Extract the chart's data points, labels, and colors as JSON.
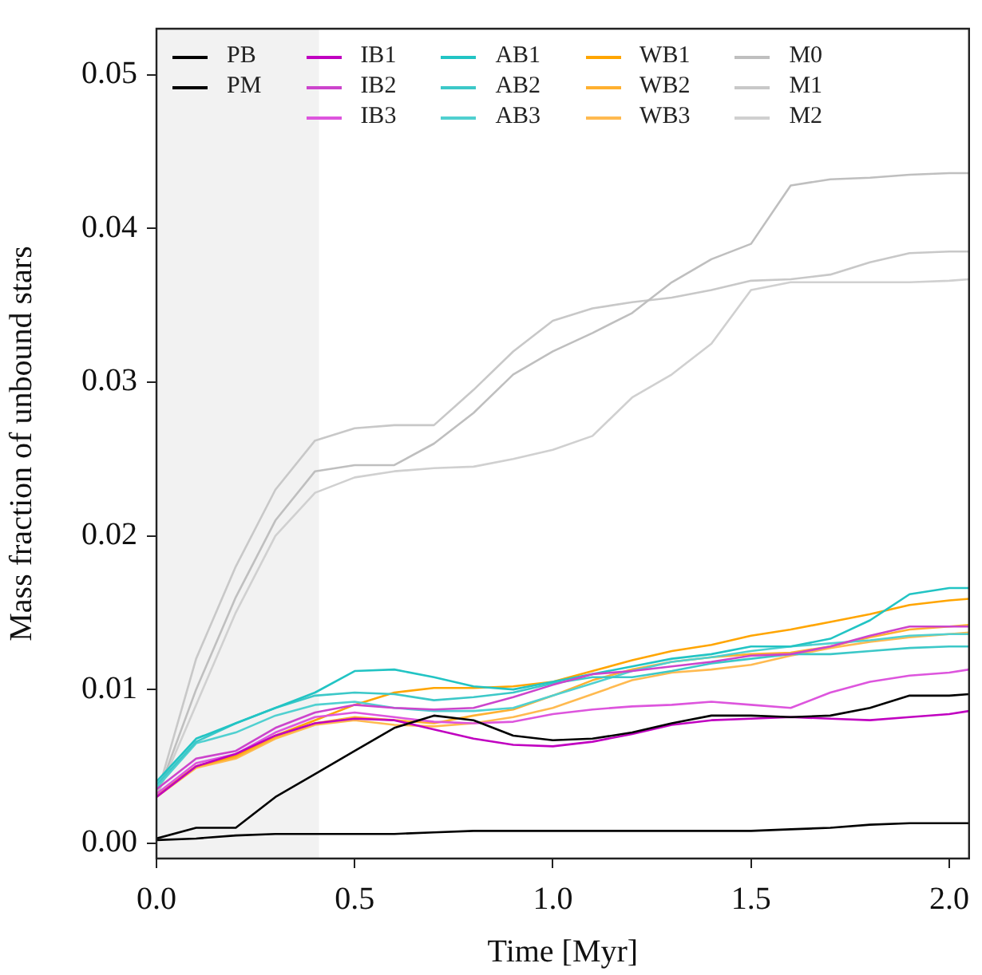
{
  "chart_data": {
    "type": "line",
    "xlabel": "Time [Myr]",
    "ylabel": "Mass fraction of unbound stars",
    "x": [
      0,
      0.1,
      0.2,
      0.3,
      0.4,
      0.5,
      0.6,
      0.7,
      0.8,
      0.9,
      1.0,
      1.1,
      1.2,
      1.3,
      1.4,
      1.5,
      1.6,
      1.7,
      1.8,
      1.9,
      2.0,
      2.05
    ],
    "xlim": [
      0,
      2.05
    ],
    "ylim": [
      -0.001,
      0.053
    ],
    "xticks": [
      {
        "value": 0,
        "label": "0.0"
      },
      {
        "value": 0.5,
        "label": "0.5"
      },
      {
        "value": 1,
        "label": "1.0"
      },
      {
        "value": 1.5,
        "label": "1.5"
      },
      {
        "value": 2,
        "label": "2.0"
      }
    ],
    "yticks": [
      {
        "value": 0,
        "label": "0.00"
      },
      {
        "value": 0.01,
        "label": "0.01"
      },
      {
        "value": 0.02,
        "label": "0.02"
      },
      {
        "value": 0.03,
        "label": "0.03"
      },
      {
        "value": 0.04,
        "label": "0.04"
      },
      {
        "value": 0.05,
        "label": "0.05"
      }
    ],
    "grid": false,
    "legend": "top",
    "marker": "none",
    "line_style": "solid",
    "bands": [
      {
        "axis": "x",
        "from": 0,
        "to": 0.41,
        "color": "#f2f2f2"
      }
    ],
    "series": [
      {
        "name": "PB",
        "color": "#000000",
        "values": [
          0.0002,
          0.0003,
          0.0005,
          0.0006,
          0.0006,
          0.0006,
          0.0006,
          0.0007,
          0.0008,
          0.0008,
          0.0008,
          0.0008,
          0.0008,
          0.0008,
          0.0008,
          0.0008,
          0.0009,
          0.001,
          0.0012,
          0.0013,
          0.0013,
          0.0013
        ]
      },
      {
        "name": "PM",
        "color": "#000000",
        "values": [
          0.0003,
          0.001,
          0.001,
          0.003,
          0.0045,
          0.006,
          0.0075,
          0.0083,
          0.008,
          0.007,
          0.0067,
          0.0068,
          0.0072,
          0.0078,
          0.0083,
          0.0083,
          0.0082,
          0.0083,
          0.0088,
          0.0096,
          0.0096,
          0.0097
        ]
      },
      {
        "name": "IB1",
        "color": "#c000c0",
        "values": [
          0.003,
          0.005,
          0.0058,
          0.007,
          0.0078,
          0.0081,
          0.008,
          0.0074,
          0.0068,
          0.0064,
          0.0063,
          0.0066,
          0.0071,
          0.0077,
          0.008,
          0.0081,
          0.0082,
          0.0081,
          0.008,
          0.0082,
          0.0084,
          0.0086
        ]
      },
      {
        "name": "IB2",
        "color": "#cc44cc",
        "values": [
          0.0035,
          0.0055,
          0.006,
          0.0075,
          0.0085,
          0.009,
          0.0088,
          0.0087,
          0.0088,
          0.0095,
          0.0103,
          0.011,
          0.0112,
          0.0115,
          0.0118,
          0.0122,
          0.0123,
          0.0128,
          0.0135,
          0.0141,
          0.0141,
          0.0141
        ]
      },
      {
        "name": "IB3",
        "color": "#dd55dd",
        "values": [
          0.0032,
          0.0052,
          0.0058,
          0.0072,
          0.0082,
          0.0085,
          0.0082,
          0.0079,
          0.0078,
          0.0079,
          0.0084,
          0.0087,
          0.0089,
          0.009,
          0.0092,
          0.009,
          0.0088,
          0.0098,
          0.0105,
          0.0109,
          0.0111,
          0.0113
        ]
      },
      {
        "name": "AB1",
        "color": "#22c4c4",
        "values": [
          0.004,
          0.0068,
          0.0078,
          0.0088,
          0.0098,
          0.0112,
          0.0113,
          0.0108,
          0.0102,
          0.01,
          0.0105,
          0.011,
          0.0115,
          0.012,
          0.0123,
          0.0128,
          0.0128,
          0.0133,
          0.0145,
          0.0162,
          0.0166,
          0.0166
        ]
      },
      {
        "name": "AB2",
        "color": "#3cc8c8",
        "values": [
          0.0038,
          0.0066,
          0.0078,
          0.0088,
          0.0096,
          0.0098,
          0.0097,
          0.0093,
          0.0095,
          0.0098,
          0.0104,
          0.0108,
          0.0108,
          0.0112,
          0.0117,
          0.012,
          0.0123,
          0.0123,
          0.0125,
          0.0127,
          0.0128,
          0.0128
        ]
      },
      {
        "name": "AB3",
        "color": "#50d0d0",
        "values": [
          0.0036,
          0.0065,
          0.0072,
          0.0083,
          0.009,
          0.0092,
          0.0088,
          0.0086,
          0.0086,
          0.0088,
          0.0096,
          0.0104,
          0.0112,
          0.0118,
          0.0121,
          0.0125,
          0.0128,
          0.013,
          0.0132,
          0.0135,
          0.0136,
          0.0136
        ]
      },
      {
        "name": "WB1",
        "color": "#ffa500",
        "values": [
          0.0032,
          0.005,
          0.0057,
          0.007,
          0.008,
          0.009,
          0.0098,
          0.0101,
          0.0101,
          0.0102,
          0.0105,
          0.0112,
          0.0119,
          0.0125,
          0.0129,
          0.0135,
          0.0139,
          0.0144,
          0.0149,
          0.0155,
          0.0158,
          0.0159
        ]
      },
      {
        "name": "WB2",
        "color": "#ffb030",
        "values": [
          0.0031,
          0.005,
          0.0056,
          0.0069,
          0.0078,
          0.0082,
          0.008,
          0.0078,
          0.0083,
          0.0087,
          0.0096,
          0.0106,
          0.0113,
          0.0118,
          0.0121,
          0.0123,
          0.0124,
          0.0128,
          0.0134,
          0.0139,
          0.0141,
          0.0142
        ]
      },
      {
        "name": "WB3",
        "color": "#ffba50",
        "values": [
          0.003,
          0.0049,
          0.0055,
          0.0068,
          0.0077,
          0.008,
          0.0077,
          0.0076,
          0.0078,
          0.0082,
          0.0088,
          0.0097,
          0.0106,
          0.0111,
          0.0113,
          0.0116,
          0.0122,
          0.0127,
          0.0131,
          0.0134,
          0.0136,
          0.0137
        ]
      },
      {
        "name": "M0",
        "color": "#bfbfbf",
        "values": [
          0.003,
          0.01,
          0.016,
          0.021,
          0.0242,
          0.0246,
          0.0246,
          0.026,
          0.028,
          0.0305,
          0.032,
          0.0332,
          0.0345,
          0.0365,
          0.038,
          0.039,
          0.0428,
          0.0432,
          0.0433,
          0.0435,
          0.0436,
          0.0436
        ]
      },
      {
        "name": "M1",
        "color": "#c8c8c8",
        "values": [
          0.003,
          0.012,
          0.018,
          0.023,
          0.0262,
          0.027,
          0.0272,
          0.0272,
          0.0295,
          0.032,
          0.034,
          0.0348,
          0.0352,
          0.0355,
          0.036,
          0.0366,
          0.0367,
          0.037,
          0.0378,
          0.0384,
          0.0385,
          0.0385
        ]
      },
      {
        "name": "M2",
        "color": "#d0d0d0",
        "values": [
          0.003,
          0.009,
          0.015,
          0.02,
          0.0228,
          0.0238,
          0.0242,
          0.0244,
          0.0245,
          0.025,
          0.0256,
          0.0265,
          0.029,
          0.0305,
          0.0325,
          0.036,
          0.0365,
          0.0365,
          0.0365,
          0.0365,
          0.0366,
          0.0367
        ]
      }
    ]
  }
}
